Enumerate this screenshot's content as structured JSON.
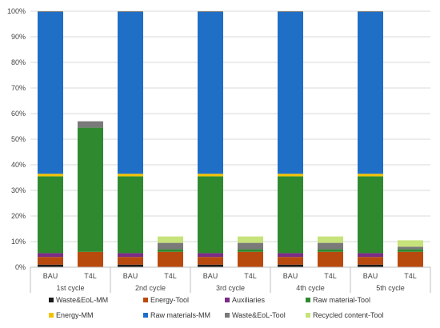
{
  "chart_data": {
    "type": "bar",
    "stacked": true,
    "title": "",
    "xlabel": "",
    "ylabel": "",
    "ylim": [
      0,
      100
    ],
    "ytick_labels": [
      "0%",
      "10%",
      "20%",
      "30%",
      "40%",
      "50%",
      "60%",
      "70%",
      "80%",
      "90%",
      "100%"
    ],
    "grid": "horizontal",
    "legend_position": "bottom",
    "groups": [
      "1st cycle",
      "2nd cycle",
      "3rd cycle",
      "4th cycle",
      "5th cycle"
    ],
    "categories": [
      "BAU",
      "T4L",
      "BAU",
      "T4L",
      "BAU",
      "T4L",
      "BAU",
      "T4L",
      "BAU",
      "T4L"
    ],
    "series": [
      {
        "name": "Waste&EoL-MM",
        "color": "#1a1a1a",
        "values": [
          1,
          0,
          1,
          0,
          1,
          0,
          1,
          0,
          1,
          0
        ]
      },
      {
        "name": "Energy-Tool",
        "color": "#b94a0e",
        "values": [
          3,
          6,
          3,
          6,
          3,
          6,
          3,
          6,
          3,
          6
        ]
      },
      {
        "name": "Auxiliaries",
        "color": "#7b2c86",
        "values": [
          1.5,
          0,
          1.5,
          0,
          1.5,
          0,
          1.5,
          0,
          1.5,
          0
        ]
      },
      {
        "name": "Raw material-Tool",
        "color": "#2f8a2f",
        "values": [
          30,
          48.5,
          30,
          1,
          30,
          1,
          30,
          1,
          30,
          1
        ]
      },
      {
        "name": "Energy-MM",
        "color": "#f2c200",
        "values": [
          1,
          0,
          1,
          0,
          1,
          0,
          1,
          0,
          1,
          0
        ]
      },
      {
        "name": "Raw materials-MM",
        "color": "#1f6fc7",
        "values": [
          63.2,
          0,
          63.2,
          0,
          63.2,
          0,
          63.2,
          0,
          63.2,
          0
        ]
      },
      {
        "name": "Waste&EoL-Tool",
        "color": "#7a7a7a",
        "values": [
          0.3,
          2.5,
          0.3,
          2.5,
          0.3,
          2.5,
          0.3,
          2.5,
          0.3,
          1
        ]
      },
      {
        "name": "Recycled content-Tool",
        "color": "#c6e27a",
        "values": [
          0,
          0,
          0,
          2.5,
          0,
          2.5,
          0,
          2.5,
          0,
          2.5
        ]
      }
    ]
  }
}
